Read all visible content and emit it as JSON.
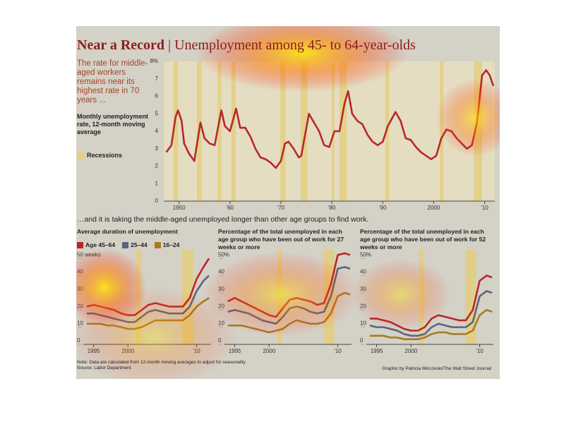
{
  "header": {
    "title": "Near a Record",
    "separator": "|",
    "subtitle": "Unemployment among 45- to 64-year-olds",
    "intro": "The rate for middle-aged workers remains near its highest rate in 70 years ...",
    "section": "…and it is taking the middle-aged unemployed longer than other age groups to find work."
  },
  "footer": {
    "note": "Note: Data are calculated from 12-month moving averages to adjust for seasonality",
    "source": "Source: Labor Department",
    "credit": "Graphic by Patricia Minczeski/The Wall Street Journal"
  },
  "chart_data": [
    {
      "type": "line",
      "title": "Monthly unemployment rate, 12-month moving average",
      "x": [
        1947.5,
        1948.5,
        1949.3,
        1949.8,
        1950.5,
        1951,
        1952,
        1953,
        1954.2,
        1955,
        1956,
        1957,
        1958.3,
        1959,
        1960,
        1961.2,
        1962,
        1963,
        1964,
        1965,
        1966,
        1967,
        1968,
        1969,
        1970,
        1970.8,
        1971.5,
        1972.5,
        1973.5,
        1974,
        1975.5,
        1976.5,
        1977.5,
        1978.5,
        1979.5,
        1980.5,
        1981.5,
        1982.5,
        1983.2,
        1984,
        1985,
        1986,
        1987,
        1988,
        1989,
        1990,
        1991,
        1992.5,
        1993.5,
        1994.5,
        1995.5,
        1996.5,
        1997.5,
        1998.5,
        1999.5,
        2000.5,
        2001.5,
        2002.5,
        2003.5,
        2004.5,
        2005.5,
        2006.5,
        2007.5,
        2008.5,
        2009.5,
        2010.3,
        2011,
        2011.7
      ],
      "series": [
        {
          "color": "#b8282a",
          "values": [
            2.8,
            3.2,
            4.8,
            5.2,
            4.6,
            3.3,
            2.7,
            2.3,
            4.5,
            3.6,
            3.3,
            3.2,
            5.2,
            4.3,
            4.0,
            5.3,
            4.2,
            4.2,
            3.7,
            3.0,
            2.5,
            2.4,
            2.2,
            1.9,
            2.3,
            3.3,
            3.4,
            3.0,
            2.5,
            2.6,
            5.0,
            4.5,
            4.0,
            3.2,
            3.1,
            4.0,
            4.0,
            5.6,
            6.3,
            5.0,
            4.6,
            4.4,
            3.8,
            3.4,
            3.2,
            3.4,
            4.3,
            5.1,
            4.6,
            3.6,
            3.5,
            3.1,
            2.8,
            2.6,
            2.4,
            2.6,
            3.6,
            4.1,
            4.0,
            3.6,
            3.3,
            3.0,
            3.2,
            4.5,
            7.2,
            7.5,
            7.2,
            6.6
          ]
        }
      ],
      "recessions": {
        "name": "Recessions",
        "color": "#e3cf7e",
        "ranges": [
          [
            1948.9,
            1949.8
          ],
          [
            1953.5,
            1954.4
          ],
          [
            1957.6,
            1958.3
          ],
          [
            1960.3,
            1961.1
          ],
          [
            1969.9,
            1970.9
          ],
          [
            1973.9,
            1975.2
          ],
          [
            1980,
            1980.5
          ],
          [
            1981.5,
            1982.9
          ],
          [
            1990.5,
            1991.2
          ],
          [
            2001.2,
            2001.9
          ],
          [
            2007.9,
            2009.5
          ]
        ]
      },
      "xlim": [
        1947,
        2012
      ],
      "xticks": [
        1950,
        {
          "value": 1960,
          "label": "'60"
        },
        {
          "value": 1970,
          "label": "'70"
        },
        {
          "value": 1980,
          "label": "'80"
        },
        {
          "value": 1990,
          "label": "'90"
        },
        2000,
        {
          "value": 2010,
          "label": "'10"
        }
      ],
      "ylim": [
        0,
        8
      ],
      "yticks": [
        0,
        1,
        2,
        3,
        4,
        5,
        6,
        7,
        {
          "value": 8,
          "label": "8%"
        }
      ]
    },
    {
      "type": "line",
      "title": "Average duration of unemployment",
      "x": [
        1994,
        1995,
        1996,
        1997,
        1998,
        1999,
        2000,
        2001,
        2002,
        2003,
        2004,
        2005,
        2006,
        2007,
        2008,
        2009,
        2010,
        2011,
        2011.8
      ],
      "series": [
        {
          "name": "Age 45–64",
          "color": "#b8282a",
          "values": [
            22,
            23,
            22,
            21,
            20,
            18,
            17,
            17,
            20,
            23,
            24,
            23,
            22,
            22,
            22,
            27,
            38,
            45,
            50
          ]
        },
        {
          "name": "25–44",
          "color": "#5d6480",
          "values": [
            18,
            18,
            17,
            16,
            15,
            14,
            13,
            13,
            16,
            19,
            20,
            19,
            18,
            18,
            18,
            22,
            31,
            37,
            40
          ]
        },
        {
          "name": "16–24",
          "color": "#a97a22",
          "values": [
            12,
            12,
            12,
            11,
            11,
            10,
            9,
            9,
            10,
            12,
            14,
            14,
            14,
            14,
            14,
            17,
            22,
            25,
            27
          ]
        }
      ],
      "recessions": {
        "color": "#e3cf7e",
        "ranges": [
          [
            2001.2,
            2001.9
          ],
          [
            2007.9,
            2009.5
          ]
        ]
      },
      "xlim": [
        1993.5,
        2012
      ],
      "xticks": [
        1995,
        2000,
        {
          "value": 2010,
          "label": "'10"
        }
      ],
      "ylim": [
        0,
        55
      ],
      "yticks": [
        0,
        10,
        20,
        30,
        40,
        {
          "value": 50,
          "label": "50 weeks"
        }
      ]
    },
    {
      "type": "line",
      "title": "Percentage of the total unemployed in each age group who have been out of work for 27 weeks or more",
      "x": [
        1994,
        1995,
        1996,
        1997,
        1998,
        1999,
        2000,
        2001,
        2002,
        2003,
        2004,
        2005,
        2006,
        2007,
        2008,
        2009,
        2010,
        2011,
        2011.8
      ],
      "series": [
        {
          "color": "#b8282a",
          "values": [
            25,
            27,
            25,
            23,
            21,
            19,
            17,
            16,
            21,
            26,
            27,
            26,
            25,
            23,
            24,
            35,
            52,
            53,
            52
          ]
        },
        {
          "color": "#5d6480",
          "values": [
            19,
            20,
            19,
            18,
            16,
            14,
            13,
            12,
            16,
            21,
            22,
            21,
            19,
            18,
            19,
            28,
            44,
            45,
            44
          ]
        },
        {
          "color": "#a97a22",
          "values": [
            11,
            11,
            11,
            10,
            9,
            8,
            7,
            8,
            9,
            12,
            14,
            13,
            12,
            12,
            13,
            18,
            28,
            30,
            29
          ]
        }
      ],
      "recessions": {
        "color": "#e3cf7e",
        "ranges": [
          [
            2001.2,
            2001.9
          ],
          [
            2007.9,
            2009.5
          ]
        ]
      },
      "xlim": [
        1993.5,
        2012
      ],
      "xticks": [
        1995,
        2000,
        {
          "value": 2010,
          "label": "'10"
        }
      ],
      "ylim": [
        0,
        55
      ],
      "yticks": [
        0,
        10,
        20,
        30,
        40,
        {
          "value": 50,
          "label": "50%"
        }
      ]
    },
    {
      "type": "line",
      "title": "Percentage of the total unemployed in each age group who have been out of work for 52 weeks or more",
      "x": [
        1994,
        1995,
        1996,
        1997,
        1998,
        1999,
        2000,
        2001,
        2002,
        2003,
        2004,
        2005,
        2006,
        2007,
        2008,
        2009,
        2010,
        2011,
        2011.8
      ],
      "series": [
        {
          "color": "#b8282a",
          "values": [
            15,
            15,
            14,
            13,
            11,
            9,
            8,
            8,
            10,
            15,
            17,
            16,
            15,
            14,
            14,
            20,
            37,
            40,
            39
          ]
        },
        {
          "color": "#5d6480",
          "values": [
            11,
            10,
            10,
            9,
            8,
            6,
            5,
            5,
            6,
            10,
            12,
            11,
            10,
            10,
            10,
            13,
            28,
            31,
            30
          ]
        },
        {
          "color": "#a97a22",
          "values": [
            5,
            5,
            5,
            4,
            4,
            3,
            3,
            3,
            4,
            6,
            7,
            7,
            6,
            6,
            6,
            8,
            17,
            20,
            19
          ]
        }
      ],
      "recessions": {
        "color": "#e3cf7e",
        "ranges": [
          [
            2001.2,
            2001.9
          ],
          [
            2007.9,
            2009.5
          ]
        ]
      },
      "xlim": [
        1993.5,
        2012
      ],
      "xticks": [
        1995,
        2000,
        {
          "value": 2010,
          "label": "'10"
        }
      ],
      "ylim": [
        0,
        55
      ],
      "yticks": [
        0,
        10,
        20,
        30,
        40,
        {
          "value": 50,
          "label": "50%"
        }
      ]
    }
  ]
}
